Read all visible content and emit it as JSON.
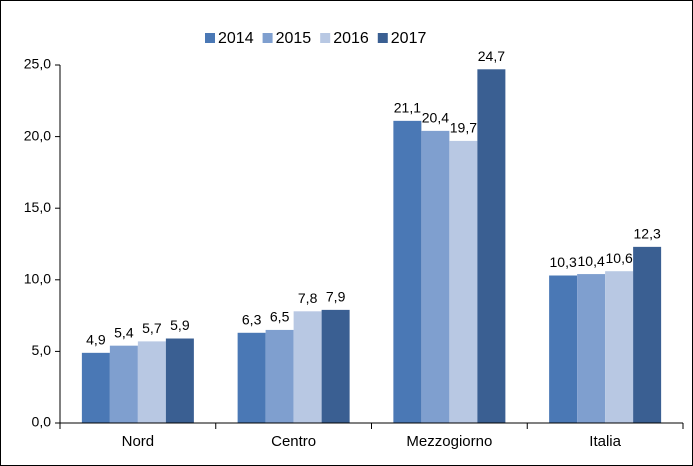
{
  "chart_data": {
    "type": "bar",
    "categories": [
      "Nord",
      "Centro",
      "Mezzogiorno",
      "Italia"
    ],
    "series": [
      {
        "name": "2014",
        "color": "#4a78b5",
        "values": [
          4.9,
          6.3,
          21.1,
          10.3
        ],
        "value_labels": [
          "4,9",
          "6,3",
          "21,1",
          "10,3"
        ]
      },
      {
        "name": "2015",
        "color": "#7f9fcf",
        "values": [
          5.4,
          6.5,
          20.4,
          10.4
        ],
        "value_labels": [
          "5,4",
          "6,5",
          "20,4",
          "10,4"
        ]
      },
      {
        "name": "2016",
        "color": "#b8c8e3",
        "values": [
          5.7,
          7.8,
          19.7,
          10.6
        ],
        "value_labels": [
          "5,7",
          "7,8",
          "19,7",
          "10,6"
        ]
      },
      {
        "name": "2017",
        "color": "#3a5f92",
        "values": [
          5.9,
          7.9,
          24.7,
          12.3
        ],
        "value_labels": [
          "5,9",
          "7,9",
          "24,7",
          "12,3"
        ]
      }
    ],
    "ylim": [
      0,
      25
    ],
    "yticks": [
      {
        "value": 0,
        "label": "0,0"
      },
      {
        "value": 5,
        "label": "5,0"
      },
      {
        "value": 10,
        "label": "10,0"
      },
      {
        "value": 15,
        "label": "15,0"
      },
      {
        "value": 20,
        "label": "20,0"
      },
      {
        "value": 25,
        "label": "25,0"
      }
    ],
    "legend": "top"
  }
}
